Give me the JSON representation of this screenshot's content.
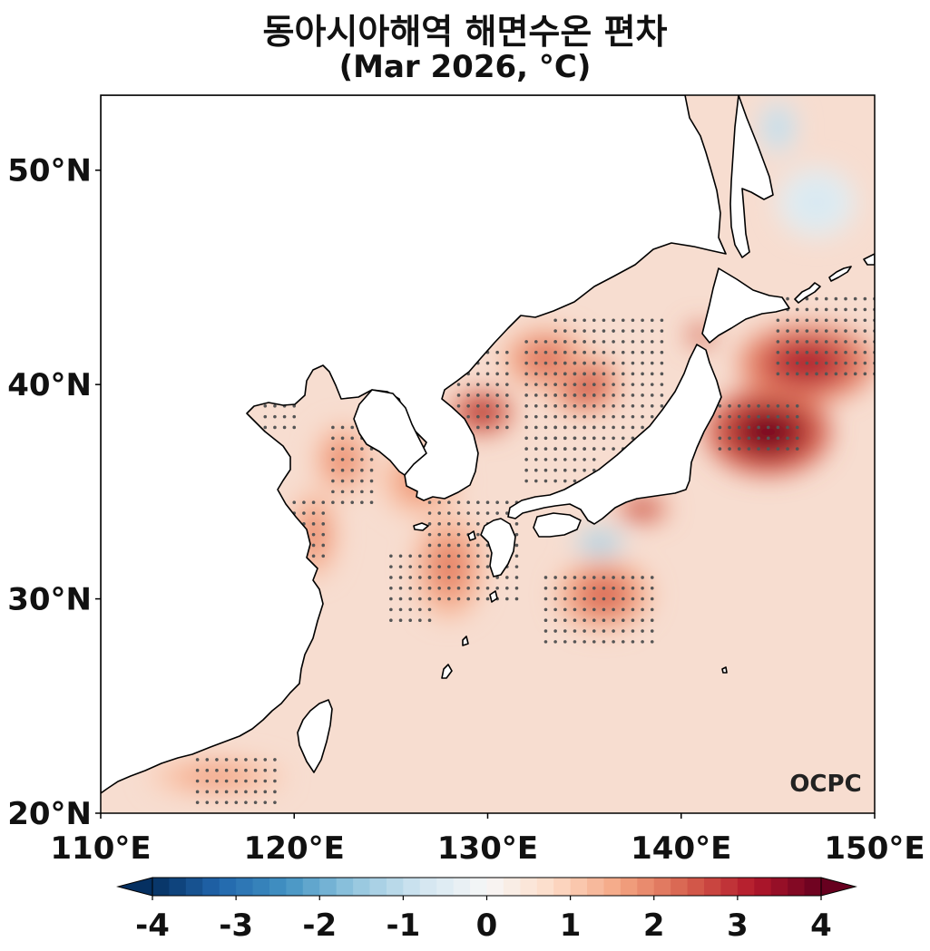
{
  "title": "동아시아해역 해면수온 편차",
  "subtitle": "(Mar 2026, °C)",
  "logo_text": "OCPC",
  "map": {
    "extent": {
      "lon": [
        110,
        150
      ],
      "lat": [
        20,
        53.5
      ]
    },
    "x_ticks": [
      {
        "value": 110,
        "label": "110°E"
      },
      {
        "value": 120,
        "label": "120°E"
      },
      {
        "value": 130,
        "label": "130°E"
      },
      {
        "value": 140,
        "label": "140°E"
      },
      {
        "value": 150,
        "label": "150°E"
      }
    ],
    "y_ticks": [
      {
        "value": 20,
        "label": "20°N"
      },
      {
        "value": 30,
        "label": "30°N"
      },
      {
        "value": 40,
        "label": "40°N"
      },
      {
        "value": 50,
        "label": "50°N"
      }
    ],
    "land_color": "#ffffff",
    "base_ocean_color": "#f7ddd0",
    "anomaly_blobs": [
      {
        "lon": 144.5,
        "lat": 37.8,
        "rlon": 3.2,
        "rlat": 2.0,
        "value": 4.0
      },
      {
        "lon": 146.5,
        "lat": 41.0,
        "rlon": 3.5,
        "rlat": 1.8,
        "value": 3.3
      },
      {
        "lon": 129.7,
        "lat": 38.7,
        "rlon": 1.6,
        "rlat": 1.0,
        "value": 3.4
      },
      {
        "lon": 135.0,
        "lat": 40.0,
        "rlon": 1.8,
        "rlat": 1.3,
        "value": 2.8
      },
      {
        "lon": 133.0,
        "lat": 41.2,
        "rlon": 2.2,
        "rlat": 1.4,
        "value": 2.3
      },
      {
        "lon": 138.0,
        "lat": 34.2,
        "rlon": 1.3,
        "rlat": 0.6,
        "value": 3.2
      },
      {
        "lon": 141.0,
        "lat": 42.3,
        "rlon": 0.7,
        "rlat": 0.5,
        "value": 3.2
      },
      {
        "lon": 136.0,
        "lat": 30.2,
        "rlon": 2.4,
        "rlat": 1.6,
        "value": 2.4
      },
      {
        "lon": 128.0,
        "lat": 31.5,
        "rlon": 1.8,
        "rlat": 2.4,
        "value": 2.1
      },
      {
        "lon": 122.5,
        "lat": 36.5,
        "rlon": 1.4,
        "rlat": 1.6,
        "value": 2.0
      },
      {
        "lon": 121.0,
        "lat": 33.0,
        "rlon": 1.2,
        "rlat": 2.0,
        "value": 2.0
      },
      {
        "lon": 116.0,
        "lat": 21.7,
        "rlon": 3.5,
        "rlat": 0.8,
        "value": 1.8
      },
      {
        "lon": 126.5,
        "lat": 35.5,
        "rlon": 2.0,
        "rlat": 1.6,
        "value": 1.9
      },
      {
        "lon": 135.8,
        "lat": 32.6,
        "rlon": 1.3,
        "rlat": 0.6,
        "value": -1.6
      },
      {
        "lon": 147.0,
        "lat": 48.5,
        "rlon": 2.0,
        "rlat": 1.6,
        "value": -0.7
      },
      {
        "lon": 145.0,
        "lat": 52.0,
        "rlon": 0.9,
        "rlat": 1.2,
        "value": -1.2
      }
    ],
    "stipple_regions": [
      {
        "lon": [
          133.5,
          139.0
        ],
        "lat": [
          37.0,
          43.0
        ]
      },
      {
        "lon": [
          128.5,
          131.0
        ],
        "lat": [
          38.0,
          41.5
        ]
      },
      {
        "lon": [
          132.0,
          135.5
        ],
        "lat": [
          35.5,
          42.0
        ]
      },
      {
        "lon": [
          127.0,
          131.5
        ],
        "lat": [
          30.0,
          34.5
        ]
      },
      {
        "lon": [
          133.0,
          138.5
        ],
        "lat": [
          28.0,
          31.3
        ]
      },
      {
        "lon": [
          122.0,
          124.0
        ],
        "lat": [
          34.5,
          38.0
        ]
      },
      {
        "lon": [
          120.0,
          121.5
        ],
        "lat": [
          32.0,
          34.5
        ]
      },
      {
        "lon": [
          125.0,
          127.0
        ],
        "lat": [
          29.0,
          32.0
        ]
      },
      {
        "lon": [
          142.0,
          146.0
        ],
        "lat": [
          37.0,
          39.0
        ]
      },
      {
        "lon": [
          145.0,
          150.0
        ],
        "lat": [
          40.5,
          44.0
        ]
      },
      {
        "lon": [
          115.0,
          119.0
        ],
        "lat": [
          20.5,
          22.5
        ]
      },
      {
        "lon": [
          118.5,
          120.0
        ],
        "lat": [
          38.0,
          39.0
        ]
      }
    ]
  },
  "colorbar": {
    "min": -4,
    "max": 4,
    "step": 0.2,
    "ticks": [
      {
        "value": -4,
        "label": "-4"
      },
      {
        "value": -3,
        "label": "-3"
      },
      {
        "value": -2,
        "label": "-2"
      },
      {
        "value": -1,
        "label": "-1"
      },
      {
        "value": 0,
        "label": "0"
      },
      {
        "value": 1,
        "label": "1"
      },
      {
        "value": 2,
        "label": "2"
      },
      {
        "value": 3,
        "label": "3"
      },
      {
        "value": 4,
        "label": "4"
      }
    ],
    "colors": [
      "#053061",
      "#2166ac",
      "#4393c3",
      "#92c5de",
      "#d1e5f0",
      "#f7f7f7",
      "#fddbc7",
      "#f4a582",
      "#d6604d",
      "#b2182b",
      "#67001f"
    ]
  }
}
